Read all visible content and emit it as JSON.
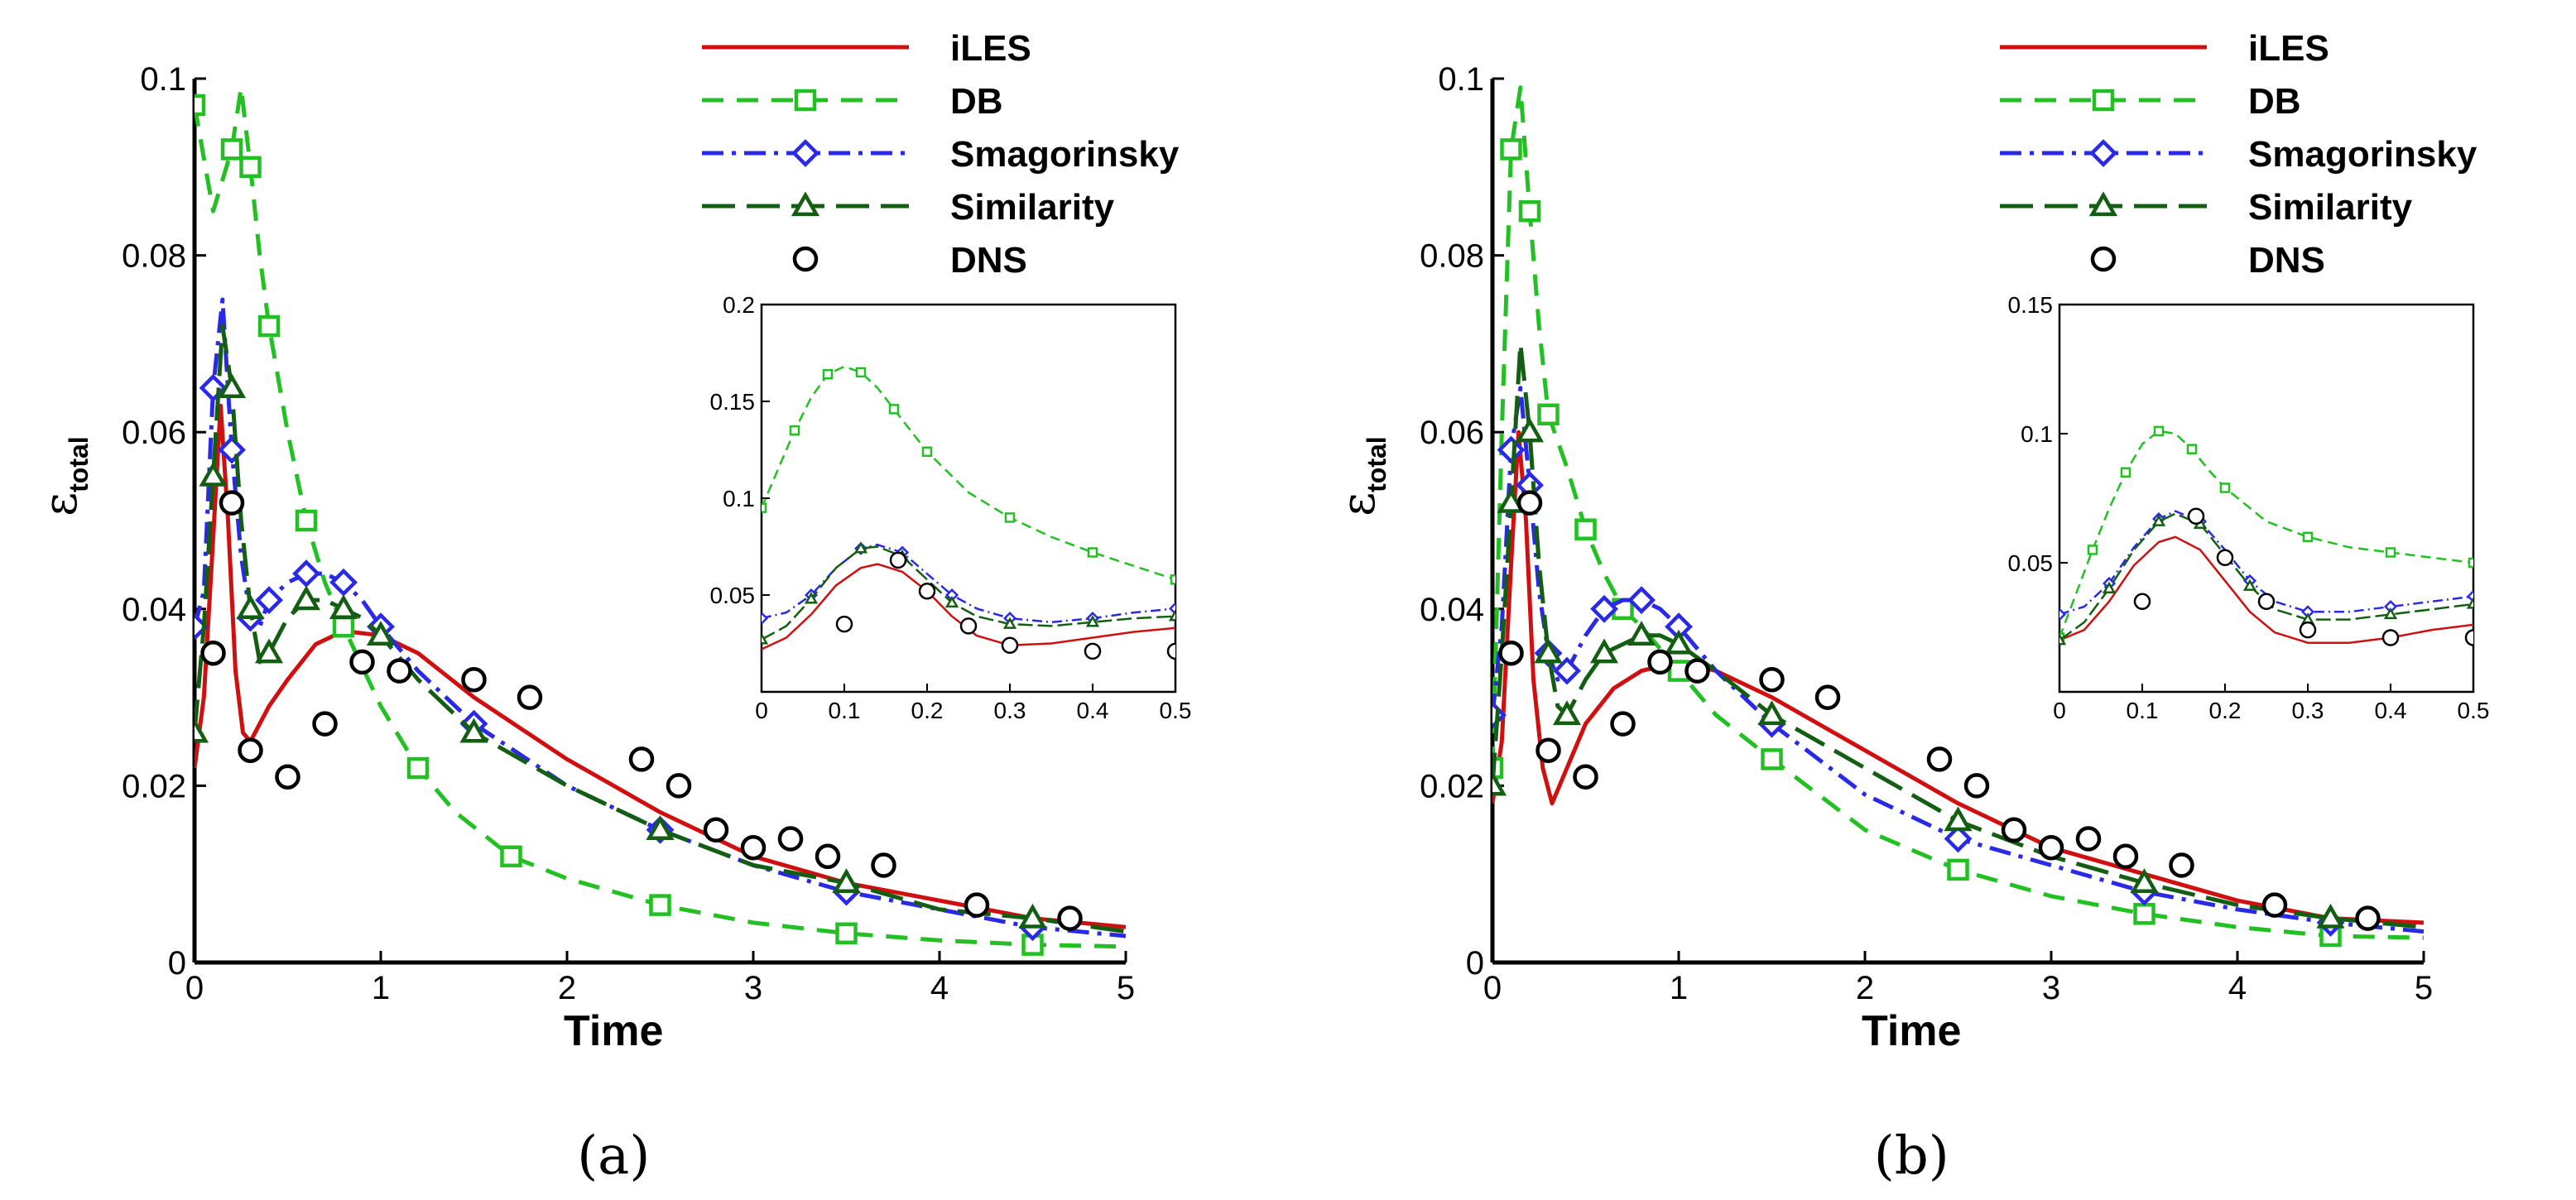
{
  "colors": {
    "iLES": "#d01010",
    "DB": "#22c022",
    "Smagorinsky": "#2a2ae6",
    "Similarity": "#135e13",
    "DNS": "#000000"
  },
  "chart_data": [
    {
      "type": "line",
      "caption": "(a)",
      "xlabel": "Time",
      "ylabel": "ε",
      "ylabel_sub": "total",
      "xlim": [
        0,
        5
      ],
      "ylim": [
        0,
        0.1
      ],
      "xticks": [
        "0",
        "1",
        "2",
        "3",
        "4",
        "5"
      ],
      "yticks": [
        "0",
        "0.02",
        "0.04",
        "0.06",
        "0.08",
        "0.1"
      ],
      "legend": [
        "iLES",
        "DB",
        "Smagorinsky",
        "Similarity",
        "DNS"
      ],
      "series": [
        {
          "name": "iLES",
          "x": [
            0,
            0.05,
            0.1,
            0.14,
            0.18,
            0.22,
            0.26,
            0.3,
            0.4,
            0.5,
            0.65,
            0.8,
            1.0,
            1.2,
            1.5,
            2.0,
            2.5,
            3.0,
            3.5,
            4.0,
            4.5,
            5.0
          ],
          "y": [
            0.022,
            0.03,
            0.048,
            0.063,
            0.05,
            0.033,
            0.026,
            0.025,
            0.029,
            0.032,
            0.036,
            0.0375,
            0.037,
            0.035,
            0.03,
            0.023,
            0.017,
            0.012,
            0.009,
            0.007,
            0.005,
            0.004
          ]
        },
        {
          "name": "DB",
          "x": [
            0,
            0.1,
            0.2,
            0.25,
            0.3,
            0.35,
            0.4,
            0.5,
            0.6,
            0.7,
            0.8,
            1.0,
            1.2,
            1.4,
            1.7,
            2.0,
            2.5,
            3.0,
            3.5,
            4.0,
            4.5,
            5.0
          ],
          "y": [
            0.097,
            0.085,
            0.092,
            0.099,
            0.09,
            0.08,
            0.072,
            0.06,
            0.05,
            0.043,
            0.038,
            0.029,
            0.022,
            0.017,
            0.012,
            0.0095,
            0.0065,
            0.0045,
            0.0033,
            0.0025,
            0.002,
            0.0018
          ]
        },
        {
          "name": "Smagorinsky",
          "x": [
            0,
            0.05,
            0.1,
            0.15,
            0.2,
            0.25,
            0.3,
            0.35,
            0.4,
            0.5,
            0.6,
            0.7,
            0.8,
            0.9,
            1.0,
            1.2,
            1.5,
            2.0,
            2.5,
            3.0,
            3.5,
            4.0,
            4.5,
            5.0
          ],
          "y": [
            0.038,
            0.042,
            0.065,
            0.075,
            0.058,
            0.046,
            0.039,
            0.038,
            0.041,
            0.043,
            0.044,
            0.044,
            0.043,
            0.041,
            0.038,
            0.033,
            0.027,
            0.02,
            0.015,
            0.011,
            0.008,
            0.006,
            0.004,
            0.003
          ]
        },
        {
          "name": "Similarity",
          "x": [
            0,
            0.05,
            0.1,
            0.15,
            0.2,
            0.25,
            0.3,
            0.35,
            0.4,
            0.5,
            0.6,
            0.7,
            0.8,
            0.9,
            1.0,
            1.2,
            1.5,
            2.0,
            2.5,
            3.0,
            3.5,
            4.0,
            4.5,
            5.0
          ],
          "y": [
            0.026,
            0.038,
            0.055,
            0.072,
            0.065,
            0.05,
            0.04,
            0.034,
            0.035,
            0.039,
            0.041,
            0.041,
            0.04,
            0.039,
            0.037,
            0.032,
            0.026,
            0.02,
            0.015,
            0.011,
            0.009,
            0.006,
            0.005,
            0.0035
          ]
        },
        {
          "name": "DNS",
          "x": [
            0.1,
            0.2,
            0.3,
            0.5,
            0.7,
            0.9,
            1.1,
            1.5,
            1.8,
            2.4,
            2.6,
            2.8,
            3.0,
            3.2,
            3.4,
            3.7,
            4.2,
            4.7
          ],
          "y": [
            0.035,
            0.052,
            0.024,
            0.021,
            0.027,
            0.034,
            0.033,
            0.032,
            0.03,
            0.023,
            0.02,
            0.015,
            0.013,
            0.014,
            0.012,
            0.011,
            0.0065,
            0.005
          ]
        }
      ],
      "inset": {
        "xlim": [
          0,
          0.5
        ],
        "ylim": [
          0,
          0.2
        ],
        "xticks": [
          "0",
          "0.1",
          "0.2",
          "0.3",
          "0.4",
          "0.5"
        ],
        "yticks": [
          "0.05",
          "0.1",
          "0.15",
          "0.2"
        ],
        "series": [
          {
            "name": "iLES",
            "x": [
              0,
              0.03,
              0.06,
              0.09,
              0.12,
              0.14,
              0.17,
              0.2,
              0.23,
              0.26,
              0.3,
              0.35,
              0.4,
              0.45,
              0.5
            ],
            "y": [
              0.022,
              0.028,
              0.04,
              0.055,
              0.064,
              0.066,
              0.062,
              0.052,
              0.039,
              0.029,
              0.024,
              0.025,
              0.028,
              0.031,
              0.033
            ]
          },
          {
            "name": "DB",
            "x": [
              0,
              0.02,
              0.04,
              0.06,
              0.08,
              0.1,
              0.12,
              0.14,
              0.16,
              0.18,
              0.2,
              0.25,
              0.3,
              0.35,
              0.4,
              0.45,
              0.5
            ],
            "y": [
              0.095,
              0.115,
              0.135,
              0.152,
              0.164,
              0.168,
              0.165,
              0.157,
              0.146,
              0.135,
              0.124,
              0.103,
              0.09,
              0.08,
              0.072,
              0.065,
              0.058
            ]
          },
          {
            "name": "Smagorinsky",
            "x": [
              0,
              0.03,
              0.06,
              0.09,
              0.12,
              0.14,
              0.17,
              0.2,
              0.23,
              0.26,
              0.3,
              0.35,
              0.4,
              0.45,
              0.5
            ],
            "y": [
              0.038,
              0.041,
              0.05,
              0.064,
              0.074,
              0.076,
              0.072,
              0.061,
              0.05,
              0.043,
              0.038,
              0.036,
              0.038,
              0.041,
              0.043
            ]
          },
          {
            "name": "Similarity",
            "x": [
              0,
              0.03,
              0.06,
              0.09,
              0.12,
              0.14,
              0.17,
              0.2,
              0.23,
              0.26,
              0.3,
              0.35,
              0.4,
              0.45,
              0.5
            ],
            "y": [
              0.027,
              0.034,
              0.048,
              0.064,
              0.074,
              0.075,
              0.07,
              0.058,
              0.046,
              0.039,
              0.035,
              0.034,
              0.036,
              0.038,
              0.039
            ]
          },
          {
            "name": "DNS",
            "x": [
              0.1,
              0.165,
              0.2,
              0.25,
              0.3,
              0.4,
              0.5
            ],
            "y": [
              0.035,
              0.068,
              0.052,
              0.034,
              0.024,
              0.021,
              0.021
            ]
          }
        ]
      }
    },
    {
      "type": "line",
      "caption": "(b)",
      "xlabel": "Time",
      "ylabel": "ε",
      "ylabel_sub": "total",
      "xlim": [
        0,
        5
      ],
      "ylim": [
        0,
        0.1
      ],
      "xticks": [
        "0",
        "1",
        "2",
        "3",
        "4",
        "5"
      ],
      "yticks": [
        "0",
        "0.02",
        "0.04",
        "0.06",
        "0.08",
        "0.1"
      ],
      "legend": [
        "iLES",
        "DB",
        "Smagorinsky",
        "Similarity",
        "DNS"
      ],
      "series": [
        {
          "name": "iLES",
          "x": [
            0,
            0.05,
            0.1,
            0.14,
            0.18,
            0.22,
            0.27,
            0.32,
            0.4,
            0.5,
            0.65,
            0.8,
            1.0,
            1.2,
            1.5,
            2.0,
            2.5,
            3.0,
            3.5,
            4.0,
            4.5,
            5.0
          ],
          "y": [
            0.018,
            0.025,
            0.045,
            0.06,
            0.05,
            0.032,
            0.022,
            0.018,
            0.022,
            0.027,
            0.031,
            0.033,
            0.034,
            0.033,
            0.03,
            0.024,
            0.018,
            0.013,
            0.01,
            0.007,
            0.005,
            0.0045
          ]
        },
        {
          "name": "DB",
          "x": [
            0,
            0.05,
            0.1,
            0.15,
            0.2,
            0.25,
            0.3,
            0.4,
            0.5,
            0.6,
            0.7,
            0.8,
            1.0,
            1.2,
            1.5,
            2.0,
            2.5,
            3.0,
            3.5,
            4.0,
            4.5,
            5.0
          ],
          "y": [
            0.022,
            0.06,
            0.092,
            0.099,
            0.085,
            0.072,
            0.062,
            0.056,
            0.049,
            0.044,
            0.04,
            0.038,
            0.033,
            0.028,
            0.023,
            0.015,
            0.0105,
            0.0075,
            0.0055,
            0.004,
            0.003,
            0.0028
          ]
        },
        {
          "name": "Smagorinsky",
          "x": [
            0,
            0.05,
            0.1,
            0.15,
            0.2,
            0.25,
            0.3,
            0.35,
            0.4,
            0.5,
            0.6,
            0.7,
            0.8,
            0.9,
            1.0,
            1.2,
            1.5,
            2.0,
            2.5,
            3.0,
            3.5,
            4.0,
            4.5,
            5.0
          ],
          "y": [
            0.028,
            0.038,
            0.058,
            0.065,
            0.054,
            0.042,
            0.035,
            0.032,
            0.033,
            0.037,
            0.04,
            0.041,
            0.041,
            0.04,
            0.038,
            0.033,
            0.027,
            0.019,
            0.014,
            0.011,
            0.008,
            0.006,
            0.0045,
            0.0035
          ]
        },
        {
          "name": "Similarity",
          "x": [
            0,
            0.05,
            0.1,
            0.15,
            0.2,
            0.25,
            0.3,
            0.35,
            0.4,
            0.5,
            0.6,
            0.7,
            0.8,
            0.9,
            1.0,
            1.2,
            1.5,
            2.0,
            2.5,
            3.0,
            3.5,
            4.0,
            4.5,
            5.0
          ],
          "y": [
            0.02,
            0.035,
            0.052,
            0.07,
            0.06,
            0.045,
            0.035,
            0.029,
            0.028,
            0.032,
            0.035,
            0.036,
            0.037,
            0.037,
            0.036,
            0.033,
            0.028,
            0.022,
            0.016,
            0.012,
            0.009,
            0.0065,
            0.005,
            0.004
          ]
        },
        {
          "name": "DNS",
          "x": [
            0.1,
            0.2,
            0.3,
            0.5,
            0.7,
            0.9,
            1.1,
            1.5,
            1.8,
            2.4,
            2.6,
            2.8,
            3.0,
            3.2,
            3.4,
            3.7,
            4.2,
            4.7
          ],
          "y": [
            0.035,
            0.052,
            0.024,
            0.021,
            0.027,
            0.034,
            0.033,
            0.032,
            0.03,
            0.023,
            0.02,
            0.015,
            0.013,
            0.014,
            0.012,
            0.011,
            0.0065,
            0.005
          ]
        }
      ],
      "inset": {
        "xlim": [
          0,
          0.5
        ],
        "ylim": [
          0,
          0.15
        ],
        "xticks": [
          "0",
          "0.1",
          "0.2",
          "0.3",
          "0.4",
          "0.5"
        ],
        "yticks": [
          "0.05",
          "0.1",
          "0.15"
        ],
        "series": [
          {
            "name": "iLES",
            "x": [
              0,
              0.03,
              0.06,
              0.09,
              0.12,
              0.14,
              0.17,
              0.2,
              0.23,
              0.26,
              0.3,
              0.35,
              0.4,
              0.45,
              0.5
            ],
            "y": [
              0.02,
              0.024,
              0.035,
              0.049,
              0.058,
              0.06,
              0.055,
              0.043,
              0.031,
              0.023,
              0.019,
              0.019,
              0.021,
              0.024,
              0.026
            ]
          },
          {
            "name": "DB",
            "x": [
              0,
              0.02,
              0.04,
              0.06,
              0.08,
              0.1,
              0.12,
              0.14,
              0.16,
              0.18,
              0.2,
              0.25,
              0.3,
              0.35,
              0.4,
              0.45,
              0.5
            ],
            "y": [
              0.021,
              0.038,
              0.055,
              0.071,
              0.085,
              0.096,
              0.101,
              0.1,
              0.094,
              0.086,
              0.079,
              0.066,
              0.06,
              0.056,
              0.054,
              0.052,
              0.05
            ]
          },
          {
            "name": "Smagorinsky",
            "x": [
              0,
              0.03,
              0.06,
              0.09,
              0.12,
              0.14,
              0.17,
              0.2,
              0.23,
              0.26,
              0.3,
              0.35,
              0.4,
              0.45,
              0.5
            ],
            "y": [
              0.03,
              0.033,
              0.042,
              0.056,
              0.067,
              0.07,
              0.066,
              0.055,
              0.043,
              0.035,
              0.031,
              0.031,
              0.033,
              0.035,
              0.037
            ]
          },
          {
            "name": "Similarity",
            "x": [
              0,
              0.03,
              0.06,
              0.09,
              0.12,
              0.14,
              0.17,
              0.2,
              0.23,
              0.26,
              0.3,
              0.35,
              0.4,
              0.45,
              0.5
            ],
            "y": [
              0.02,
              0.027,
              0.04,
              0.055,
              0.066,
              0.069,
              0.065,
              0.053,
              0.041,
              0.032,
              0.028,
              0.028,
              0.03,
              0.032,
              0.034
            ]
          },
          {
            "name": "DNS",
            "x": [
              0.1,
              0.165,
              0.2,
              0.25,
              0.3,
              0.4,
              0.5
            ],
            "y": [
              0.035,
              0.068,
              0.052,
              0.035,
              0.024,
              0.021,
              0.021
            ]
          }
        ]
      }
    }
  ]
}
